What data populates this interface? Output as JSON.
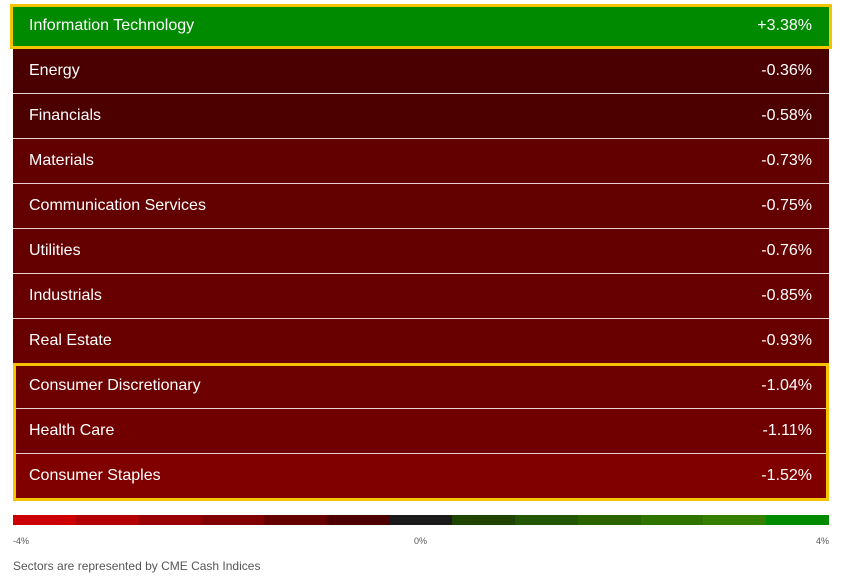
{
  "rows": [
    {
      "name": "Information Technology",
      "change": "+3.38%",
      "color": "#008a00"
    },
    {
      "name": "Energy",
      "change": "-0.36%",
      "color": "#4a0000"
    },
    {
      "name": "Financials",
      "change": "-0.58%",
      "color": "#4d0000"
    },
    {
      "name": "Materials",
      "change": "-0.73%",
      "color": "#620000"
    },
    {
      "name": "Communication Services",
      "change": "-0.75%",
      "color": "#630000"
    },
    {
      "name": "Utilities",
      "change": "-0.76%",
      "color": "#640000"
    },
    {
      "name": "Industrials",
      "change": "-0.85%",
      "color": "#670000"
    },
    {
      "name": "Real Estate",
      "change": "-0.93%",
      "color": "#690000"
    },
    {
      "name": "Consumer Discretionary",
      "change": "-1.04%",
      "color": "#6d0000"
    },
    {
      "name": "Health Care",
      "change": "-1.11%",
      "color": "#700000"
    },
    {
      "name": "Consumer Staples",
      "change": "-1.52%",
      "color": "#800000"
    }
  ],
  "scale": {
    "colors": [
      "#cc0000",
      "#b30000",
      "#990000",
      "#800000",
      "#660000",
      "#4d0000",
      "#1a1a1a",
      "#1f4400",
      "#245500",
      "#2a6400",
      "#2f7300",
      "#347f00",
      "#008a00"
    ],
    "labels": [
      "-4%",
      "0%",
      "4%"
    ]
  },
  "footnote": "Sectors are represented by CME Cash Indices"
}
